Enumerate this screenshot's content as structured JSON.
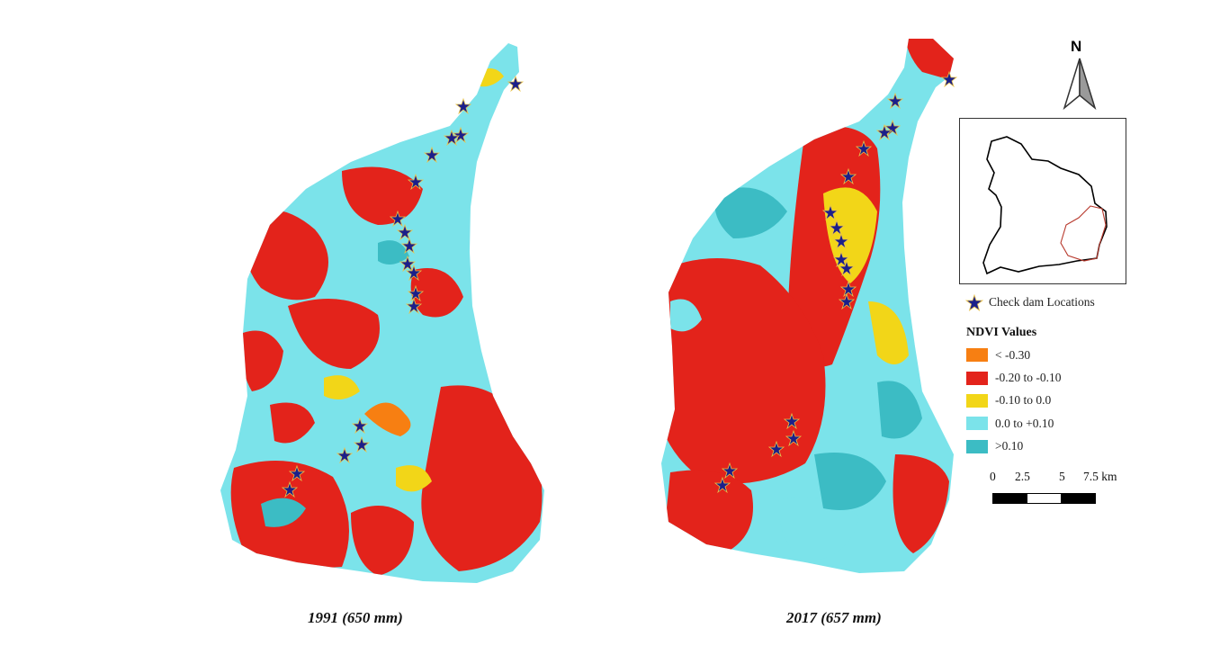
{
  "maps": [
    {
      "caption": "1991 (650 mm)"
    },
    {
      "caption": "2017 (657 mm)"
    }
  ],
  "north_arrow": {
    "label": "N"
  },
  "legend": {
    "check_dam_label": "Check dam Locations",
    "ndvi_title": "NDVI Values",
    "classes": [
      {
        "label": "< -0.30",
        "color": "#f77f12"
      },
      {
        "label": "-0.20 to -0.10",
        "color": "#e3231b"
      },
      {
        "label": "-0.10 to 0.0",
        "color": "#f2d618"
      },
      {
        "label": "0.0 to +0.10",
        "color": "#7be3ea"
      },
      {
        "label": ">0.10",
        "color": "#3cbcc4"
      }
    ]
  },
  "scale_bar": {
    "ticks": [
      "0",
      "2.5",
      "5",
      "7.5 km"
    ]
  },
  "colors": {
    "check_dam_marker": "#1b1f8a",
    "check_dam_outline": "#e8c24a",
    "inset_study_area": "#b83a2e"
  }
}
